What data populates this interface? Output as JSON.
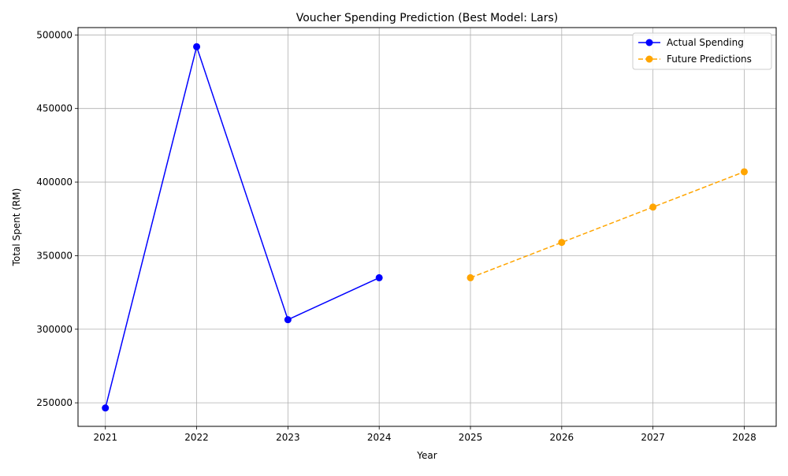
{
  "chart_data": {
    "type": "line",
    "title": "Voucher Spending Prediction (Best Model: Lars)",
    "xlabel": "Year",
    "ylabel": "Total Spent (RM)",
    "xlim": [
      2020.7,
      2028.35
    ],
    "ylim": [
      234000,
      505000
    ],
    "xticks": [
      2021,
      2022,
      2023,
      2024,
      2025,
      2026,
      2027,
      2028
    ],
    "yticks": [
      250000,
      300000,
      350000,
      400000,
      450000,
      500000
    ],
    "grid": true,
    "legend_position": "top-right",
    "series": [
      {
        "name": "Actual Spending",
        "color": "#0000ff",
        "line_style": "solid",
        "marker": "circle",
        "x": [
          2021,
          2022,
          2023,
          2024
        ],
        "y": [
          246500,
          492000,
          306500,
          335000
        ]
      },
      {
        "name": "Future Predictions",
        "color": "#ffa500",
        "line_style": "dashed",
        "marker": "circle",
        "x": [
          2025,
          2026,
          2027,
          2028
        ],
        "y": [
          335000,
          359000,
          383000,
          407000
        ]
      }
    ]
  }
}
